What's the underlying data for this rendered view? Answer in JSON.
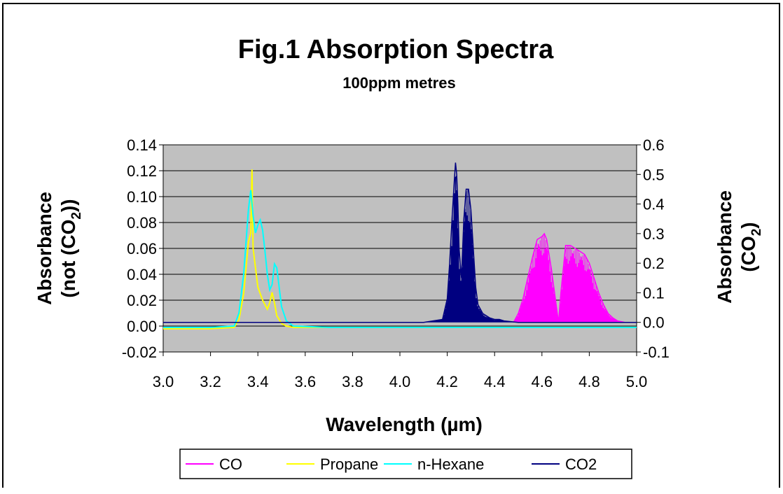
{
  "chart_data": {
    "type": "line",
    "title": "Fig.1 Absorption Spectra",
    "subtitle": "100ppm metres",
    "xlabel": "Wavelength (µm)",
    "ylabel_left": "Absorbance",
    "ylabel_left_line2": "(not (CO",
    "ylabel_left_sub": "2",
    "ylabel_left_close": "))",
    "ylabel_right": "Absorbance",
    "ylabel_right_line2": "(CO",
    "ylabel_right_sub": "2",
    "ylabel_right_close": ")",
    "xlim": [
      3.0,
      5.0
    ],
    "ylim_left": [
      -0.02,
      0.14
    ],
    "ylim_right": [
      -0.1,
      0.6
    ],
    "x_ticks": [
      "3.0",
      "3.2",
      "3.4",
      "3.6",
      "3.8",
      "4.0",
      "4.2",
      "4.4",
      "4.6",
      "4.8",
      "5.0"
    ],
    "y_ticks_left": [
      "-0.02",
      "0.00",
      "0.02",
      "0.04",
      "0.06",
      "0.08",
      "0.10",
      "0.12",
      "0.14"
    ],
    "y_ticks_right": [
      "-0.1",
      "0.0",
      "0.1",
      "0.2",
      "0.3",
      "0.4",
      "0.5",
      "0.6"
    ],
    "grid": true,
    "plot_background": "#c0c0c0",
    "legend_position": "bottom",
    "series": [
      {
        "name": "CO",
        "color": "#ff00ff",
        "axis": "right",
        "style": "dense-lines",
        "x": [
          4.48,
          4.5,
          4.52,
          4.54,
          4.56,
          4.58,
          4.6,
          4.61,
          4.62,
          4.64,
          4.66,
          4.67,
          4.68,
          4.7,
          4.72,
          4.74,
          4.76,
          4.78,
          4.8,
          4.82,
          4.84,
          4.86,
          4.88,
          4.9,
          4.92,
          4.95
        ],
        "y": [
          0.0,
          0.03,
          0.08,
          0.15,
          0.22,
          0.28,
          0.29,
          0.3,
          0.28,
          0.18,
          0.06,
          0.0,
          0.1,
          0.26,
          0.26,
          0.25,
          0.24,
          0.23,
          0.2,
          0.15,
          0.1,
          0.06,
          0.03,
          0.015,
          0.005,
          0.0
        ]
      },
      {
        "name": "Propane",
        "color": "#ffff00",
        "axis": "left",
        "style": "line",
        "x": [
          3.0,
          3.2,
          3.3,
          3.32,
          3.34,
          3.35,
          3.36,
          3.37,
          3.375,
          3.38,
          3.39,
          3.4,
          3.42,
          3.44,
          3.45,
          3.46,
          3.47,
          3.48,
          3.5,
          3.52,
          3.55,
          3.7,
          3.9,
          4.1,
          4.4,
          4.7,
          5.0
        ],
        "y": [
          -0.002,
          -0.002,
          -0.001,
          0.005,
          0.025,
          0.045,
          0.065,
          0.072,
          0.121,
          0.06,
          0.045,
          0.03,
          0.02,
          0.013,
          0.018,
          0.026,
          0.018,
          0.008,
          0.002,
          0.0,
          -0.001,
          -0.001,
          -0.001,
          -0.001,
          -0.001,
          -0.001,
          -0.001
        ]
      },
      {
        "name": "n-Hexane",
        "color": "#00ffff",
        "axis": "left",
        "style": "line",
        "x": [
          3.0,
          3.2,
          3.3,
          3.32,
          3.34,
          3.35,
          3.36,
          3.37,
          3.38,
          3.39,
          3.4,
          3.41,
          3.42,
          3.43,
          3.44,
          3.45,
          3.46,
          3.47,
          3.48,
          3.49,
          3.5,
          3.52,
          3.55,
          3.7,
          4.0,
          4.5,
          5.0
        ],
        "y": [
          -0.001,
          -0.001,
          0.0,
          0.01,
          0.04,
          0.065,
          0.09,
          0.105,
          0.085,
          0.072,
          0.078,
          0.082,
          0.074,
          0.058,
          0.04,
          0.028,
          0.032,
          0.048,
          0.045,
          0.03,
          0.015,
          0.004,
          0.0,
          -0.001,
          -0.001,
          -0.001,
          -0.001
        ]
      },
      {
        "name": "CO2",
        "color": "#000080",
        "axis": "right",
        "style": "dense-lines",
        "x": [
          3.0,
          4.1,
          4.18,
          4.2,
          4.21,
          4.22,
          4.23,
          4.235,
          4.24,
          4.245,
          4.25,
          4.26,
          4.27,
          4.28,
          4.29,
          4.3,
          4.31,
          4.32,
          4.33,
          4.35,
          4.38,
          4.4,
          4.42,
          4.44,
          4.5,
          5.0
        ],
        "y": [
          0.0,
          0.0,
          0.01,
          0.08,
          0.2,
          0.35,
          0.48,
          0.54,
          0.5,
          0.4,
          0.25,
          0.15,
          0.35,
          0.45,
          0.45,
          0.38,
          0.25,
          0.12,
          0.06,
          0.03,
          0.015,
          0.01,
          0.01,
          0.005,
          0.0,
          0.0
        ]
      }
    ]
  }
}
